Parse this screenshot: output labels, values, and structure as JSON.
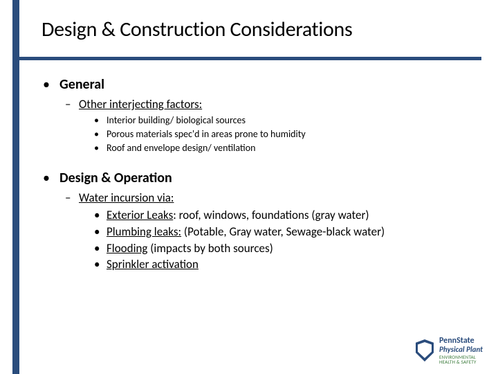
{
  "title": "Design & Construction Considerations",
  "sections": [
    {
      "label": "General",
      "sub": {
        "label": "Other interjecting factors:",
        "items": [
          "Interior building/ biological sources",
          "Porous materials spec'd in areas prone to humidity",
          "Roof and envelope design/ ventilation"
        ]
      }
    },
    {
      "label": "Design & Operation",
      "sub": {
        "label": "Water incursion via:",
        "detail_items": [
          {
            "u": "Exterior Leaks",
            "rest": ": roof, windows, foundations (gray water)"
          },
          {
            "u": "Plumbing leaks:",
            "rest": "  (Potable, Gray water, Sewage-black water)"
          },
          {
            "u": "Flooding",
            "rest": " (impacts by both sources)"
          },
          {
            "u": "Sprinkler activation",
            "rest": ""
          }
        ]
      }
    }
  ],
  "footer": {
    "line1": "PennState",
    "line2": "Physical Plant",
    "line3": "ENVIRONMENTAL",
    "line4": "HEALTH & SAFETY"
  },
  "colors": {
    "accent": "#2a4c7c",
    "text": "#000000",
    "green": "#3a7a3a",
    "bg": "#ffffff"
  },
  "typography": {
    "title_size": 30,
    "lvl1_size": 20,
    "lvl2_size": 17,
    "lvl3_small_size": 14,
    "lvl3_large_size": 17
  }
}
